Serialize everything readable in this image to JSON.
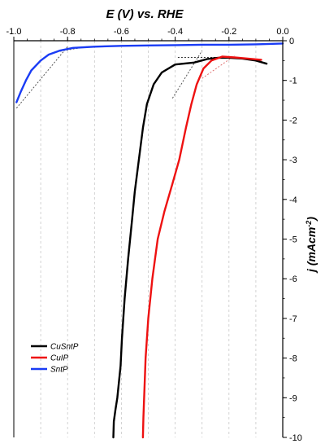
{
  "chart_data": {
    "type": "line",
    "title": "",
    "xlabel": "E (V) vs. RHE",
    "ylabel_main": "j (mAcm",
    "ylabel_sup": "-2",
    "ylabel_close": ")",
    "xlim": [
      -1.0,
      0.0
    ],
    "ylim": [
      -10,
      0
    ],
    "x_axis_position": "top",
    "y_axis_position": "right",
    "x_ticks": [
      {
        "value": -1.0,
        "label": "-1.0"
      },
      {
        "value": -0.8,
        "label": "-0.8"
      },
      {
        "value": -0.6,
        "label": "-0.6"
      },
      {
        "value": -0.4,
        "label": "-0.4"
      },
      {
        "value": -0.2,
        "label": "-0.2"
      },
      {
        "value": 0.0,
        "label": "0.0"
      }
    ],
    "y_ticks": [
      {
        "value": 0,
        "label": "0"
      },
      {
        "value": -1,
        "label": "-1"
      },
      {
        "value": -2,
        "label": "-2"
      },
      {
        "value": -3,
        "label": "-3"
      },
      {
        "value": -4,
        "label": "-4"
      },
      {
        "value": -5,
        "label": "-5"
      },
      {
        "value": -6,
        "label": "-6"
      },
      {
        "value": -7,
        "label": "-7"
      },
      {
        "value": -8,
        "label": "-8"
      },
      {
        "value": -9,
        "label": "-9"
      },
      {
        "value": -10,
        "label": "-10"
      }
    ],
    "grid": "vertical dashed",
    "legend_position": "bottom-left",
    "series": [
      {
        "name": "CuSntP",
        "color": "#000000",
        "points": [
          [
            -0.63,
            -10.0
          ],
          [
            -0.628,
            -9.6
          ],
          [
            -0.622,
            -9.3
          ],
          [
            -0.615,
            -9.0
          ],
          [
            -0.603,
            -8.2
          ],
          [
            -0.598,
            -7.5
          ],
          [
            -0.588,
            -6.5
          ],
          [
            -0.575,
            -5.5
          ],
          [
            -0.56,
            -4.5
          ],
          [
            -0.55,
            -3.8
          ],
          [
            -0.535,
            -3.0
          ],
          [
            -0.52,
            -2.2
          ],
          [
            -0.505,
            -1.6
          ],
          [
            -0.48,
            -1.1
          ],
          [
            -0.45,
            -0.8
          ],
          [
            -0.4,
            -0.6
          ],
          [
            -0.33,
            -0.55
          ],
          [
            -0.28,
            -0.46
          ],
          [
            -0.24,
            -0.43
          ],
          [
            -0.2,
            -0.43
          ],
          [
            -0.15,
            -0.45
          ],
          [
            -0.1,
            -0.5
          ],
          [
            -0.06,
            -0.58
          ]
        ]
      },
      {
        "name": "CuIP",
        "color": "#ee1111",
        "points": [
          [
            -0.52,
            -10.0
          ],
          [
            -0.518,
            -9.5
          ],
          [
            -0.51,
            -8.0
          ],
          [
            -0.5,
            -7.0
          ],
          [
            -0.485,
            -6.0
          ],
          [
            -0.465,
            -5.0
          ],
          [
            -0.44,
            -4.3
          ],
          [
            -0.41,
            -3.6
          ],
          [
            -0.385,
            -3.0
          ],
          [
            -0.36,
            -2.2
          ],
          [
            -0.34,
            -1.6
          ],
          [
            -0.32,
            -1.1
          ],
          [
            -0.295,
            -0.7
          ],
          [
            -0.265,
            -0.5
          ],
          [
            -0.225,
            -0.4
          ],
          [
            -0.18,
            -0.42
          ],
          [
            -0.13,
            -0.45
          ],
          [
            -0.08,
            -0.48
          ]
        ]
      },
      {
        "name": "SntP",
        "color": "#1a3cf5",
        "points": [
          [
            -0.99,
            -1.55
          ],
          [
            -0.975,
            -1.3
          ],
          [
            -0.955,
            -1.0
          ],
          [
            -0.935,
            -0.75
          ],
          [
            -0.9,
            -0.5
          ],
          [
            -0.87,
            -0.35
          ],
          [
            -0.83,
            -0.25
          ],
          [
            -0.78,
            -0.18
          ],
          [
            -0.7,
            -0.15
          ],
          [
            -0.6,
            -0.13
          ],
          [
            -0.5,
            -0.12
          ],
          [
            -0.4,
            -0.11
          ],
          [
            -0.3,
            -0.1
          ],
          [
            -0.2,
            -0.1
          ],
          [
            -0.1,
            -0.09
          ],
          [
            0.0,
            -0.07
          ]
        ]
      }
    ]
  }
}
